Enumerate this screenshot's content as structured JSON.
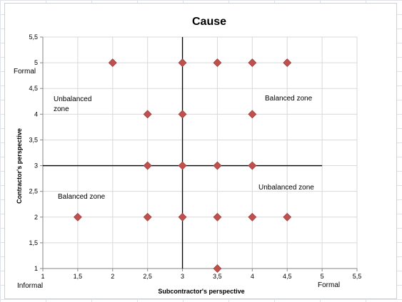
{
  "chart_data": {
    "type": "scatter",
    "title": "Cause",
    "xlabel": "Subcontractor's perspective",
    "ylabel": "Contractor's perspective",
    "xlim": [
      1,
      5.5
    ],
    "ylim": [
      1,
      5.5
    ],
    "x_ticks": [
      1,
      1.5,
      2,
      2.5,
      3,
      3.5,
      4,
      4.5,
      5,
      5.5
    ],
    "y_ticks": [
      1,
      1.5,
      2,
      2.5,
      3,
      3.5,
      4,
      4.5,
      5,
      5.5
    ],
    "x_tick_labels": [
      "1",
      "1,5",
      "2",
      "2,5",
      "3",
      "3,5",
      "4",
      "4,5",
      "5",
      "5,5"
    ],
    "y_tick_labels": [
      "1",
      "1,5",
      "2",
      "2,5",
      "3",
      "3,5",
      "4",
      "4,5",
      "5",
      "5,5"
    ],
    "grid": true,
    "marker": "diamond",
    "marker_color": "#c0504d",
    "points": [
      {
        "x": 2,
        "y": 5
      },
      {
        "x": 3,
        "y": 5
      },
      {
        "x": 3.5,
        "y": 5
      },
      {
        "x": 4,
        "y": 5
      },
      {
        "x": 4.5,
        "y": 5
      },
      {
        "x": 2.5,
        "y": 4
      },
      {
        "x": 3,
        "y": 4
      },
      {
        "x": 4,
        "y": 4
      },
      {
        "x": 2.5,
        "y": 3
      },
      {
        "x": 3,
        "y": 3
      },
      {
        "x": 3.5,
        "y": 3
      },
      {
        "x": 4,
        "y": 3
      },
      {
        "x": 1.5,
        "y": 2
      },
      {
        "x": 2.5,
        "y": 2
      },
      {
        "x": 3,
        "y": 2
      },
      {
        "x": 3.5,
        "y": 2
      },
      {
        "x": 4,
        "y": 2
      },
      {
        "x": 4.5,
        "y": 2
      },
      {
        "x": 3.5,
        "y": 1
      }
    ],
    "divider_lines": {
      "x": 3,
      "y": 3
    },
    "axis_end_labels": {
      "x_min": "Informal",
      "x_max": "Formal",
      "y_max": "Formal"
    },
    "zone_labels": {
      "top_left": [
        "Unbalanced",
        "zone"
      ],
      "top_right": "Balanced zone",
      "bottom_left": "Balanced zone",
      "bottom_right": "Unbalanced zone"
    }
  }
}
